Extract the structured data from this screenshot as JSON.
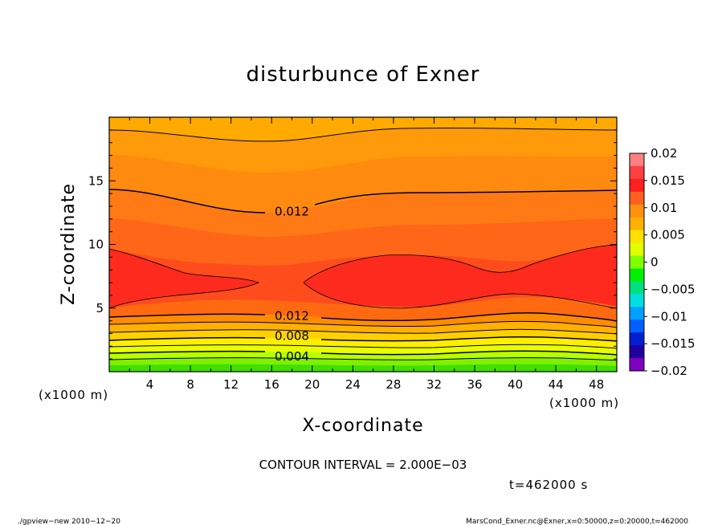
{
  "chart_data": {
    "type": "heatmap",
    "title": "disturbunce of Exner",
    "xlabel": "X-coordinate",
    "ylabel": "Z-coordinate",
    "x_unit_left": "(x1000 m)",
    "x_unit_right": "(x1000 m)",
    "xlim": [
      0,
      50
    ],
    "ylim": [
      0,
      20
    ],
    "x_ticks": [
      4,
      8,
      12,
      16,
      20,
      24,
      28,
      32,
      36,
      40,
      44,
      48
    ],
    "y_ticks": [
      5,
      10,
      15
    ],
    "colorbar": {
      "levels": [
        0.02,
        0.015,
        0.01,
        0.005,
        0,
        -0.005,
        -0.01,
        -0.015,
        -0.02
      ],
      "labels": [
        "0.02",
        "0.015",
        "0.01",
        "0.005",
        "0",
        "−0.005",
        "−0.01",
        "−0.015",
        "−0.02"
      ],
      "colors": [
        "#ff8080",
        "#ff4040",
        "#ff2020",
        "#ff6020",
        "#ff9010",
        "#ffb000",
        "#ffe000",
        "#e0ff00",
        "#80ff00",
        "#00f000",
        "#00e080",
        "#00e0e0",
        "#00a0ff",
        "#0060ff",
        "#0020d0",
        "#2000a0",
        "#8000c0"
      ]
    },
    "contour_labels": [
      {
        "text": "0.012",
        "x": 18,
        "z": 12.6
      },
      {
        "text": "0.012",
        "x": 18,
        "z": 4.4
      },
      {
        "text": "0.008",
        "x": 18,
        "z": 2.8
      },
      {
        "text": "0.004",
        "x": 18,
        "z": 1.2
      }
    ],
    "contour_interval_text": "CONTOUR INTERVAL = 2.000E−03",
    "time_text": "t=462000 s"
  },
  "footer": {
    "left": "./gpview−new  2010−12−20",
    "right": "MarsCond_Exner.nc@Exner,x=0:50000,z=0:20000,t=462000"
  }
}
